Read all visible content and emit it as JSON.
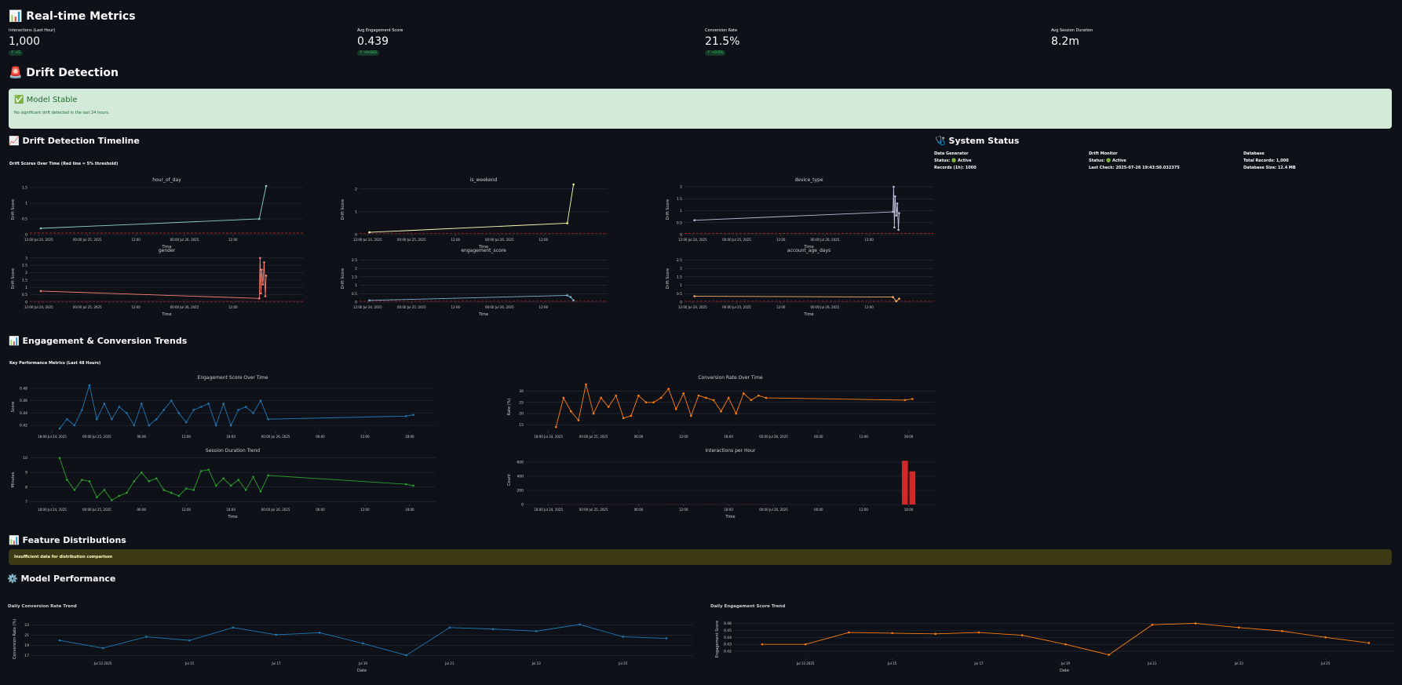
{
  "metrics": {
    "title": "📊 Real-time Metrics",
    "items": [
      {
        "label": "Interactions (Last Hour)",
        "value": "1,000",
        "delta": "↑ +5"
      },
      {
        "label": "Avg Engagement Score",
        "value": "0.439",
        "delta": "↑ +0.003"
      },
      {
        "label": "Conversion Rate",
        "value": "21.5%",
        "delta": "↑ +0.0%"
      },
      {
        "label": "Avg Session Duration",
        "value": "8.2m"
      }
    ]
  },
  "drift": {
    "title": "🚨 Drift Detection",
    "status": {
      "title": "✅ Model Stable",
      "message": "No significant drift detected in the last 24 hours."
    }
  },
  "drift_timeline": {
    "title": "📈 Drift Detection Timeline",
    "subtitle": "Drift Scores Over Time (Red line = 5% threshold)",
    "x_label": "Time",
    "y_label": "Drift Score",
    "threshold": 0.05,
    "threshold_color": "#d62728",
    "xlim": [
      9.8,
      77.5
    ],
    "xticks": [
      {
        "value": 12,
        "label": "12:00 Jul 24, 2025"
      },
      {
        "value": 24,
        "label": "00:00 Jul 25, 2025"
      },
      {
        "value": 36,
        "label": "12:00"
      },
      {
        "value": 48,
        "label": "00:00 Jul 26, 2025"
      },
      {
        "value": 60,
        "label": "12:00"
      }
    ],
    "charts": [
      {
        "type": "line",
        "title": "hour_of_day",
        "color": "#8dd3c7",
        "x": [
          12.5,
          66.5,
          68.2
        ],
        "values": [
          0.2,
          0.5,
          1.55
        ],
        "ylim": [
          0,
          1.6
        ],
        "yticks": [
          0,
          0.5,
          1,
          1.5
        ]
      },
      {
        "type": "line",
        "title": "is_weekend",
        "color": "#ffffb3",
        "x": [
          12.5,
          66.5,
          68.2
        ],
        "values": [
          0.1,
          0.5,
          2.2
        ],
        "ylim": [
          0,
          2.2
        ],
        "yticks": [
          0,
          1,
          2
        ]
      },
      {
        "type": "line",
        "title": "device_type",
        "color": "#bebada",
        "x": [
          12.5,
          66.5,
          66.7,
          66.9,
          67.1,
          67.4,
          67.7,
          68.0,
          68.2
        ],
        "values": [
          0.6,
          0.95,
          2.0,
          0.3,
          1.6,
          0.8,
          1.3,
          0.2,
          0.9
        ],
        "ylim": [
          0,
          2.1
        ],
        "yticks": [
          0,
          0.5,
          1,
          1.5,
          2
        ]
      },
      {
        "type": "line",
        "title": "gender",
        "color": "#fb8072",
        "x": [
          12.5,
          66.5,
          66.7,
          66.9,
          67.1,
          67.4,
          67.7,
          68.0,
          68.2
        ],
        "values": [
          0.75,
          0.25,
          3.0,
          0.6,
          2.2,
          1.2,
          2.7,
          0.4,
          1.8
        ],
        "ylim": [
          0,
          3.2
        ],
        "yticks": [
          0,
          0.5,
          1,
          1.5,
          2,
          2.5,
          3
        ]
      },
      {
        "type": "line",
        "title": "engagement_score",
        "color": "#80b1d3",
        "x": [
          12.5,
          66.5,
          67.4,
          68.2
        ],
        "values": [
          0.1,
          0.4,
          0.3,
          0.1
        ],
        "ylim": [
          0,
          2.8
        ],
        "yticks": [
          0,
          0.5,
          1,
          1.5,
          2,
          2.5
        ]
      },
      {
        "type": "line",
        "title": "account_age_days",
        "color": "#fdb462",
        "x": [
          12.5,
          66.5,
          67.4,
          68.2
        ],
        "values": [
          0.35,
          0.3,
          0.05,
          0.2
        ],
        "ylim": [
          0,
          2.8
        ],
        "yticks": [
          0,
          0.5,
          1,
          1.5,
          2,
          2.5
        ]
      }
    ]
  },
  "system_status": {
    "title": "🩺 System Status",
    "columns": [
      {
        "title": "Data Generator",
        "lines": [
          "Status: 🟢 Active",
          "Records (1h): 1000"
        ]
      },
      {
        "title": "Drift Monitor",
        "lines": [
          "Status: 🟢 Active",
          "Last Check: 2025-07-26 19:43:50.032375"
        ]
      },
      {
        "title": "Database",
        "lines": [
          "Total Records: 1,000",
          "Database Size: 12.4 MB"
        ]
      }
    ]
  },
  "trends": {
    "title": "📊 Engagement & Conversion Trends",
    "subtitle": "Key Performance Metrics (Last 48 Hours)",
    "xlim": [
      15,
      69.5
    ],
    "xticks": [
      {
        "value": 18,
        "label": "18:00 Jul 24, 2025"
      },
      {
        "value": 24,
        "label": "00:00 Jul 25, 2025"
      },
      {
        "value": 30,
        "label": "06:00"
      },
      {
        "value": 36,
        "label": "12:00"
      },
      {
        "value": 42,
        "label": "18:00"
      },
      {
        "value": 48,
        "label": "00:00 Jul 26, 2025"
      },
      {
        "value": 54,
        "label": "06:00"
      },
      {
        "value": 60,
        "label": "12:00"
      },
      {
        "value": 66,
        "label": "18:00"
      }
    ],
    "x": [
      19,
      20,
      21,
      22,
      23,
      24,
      25,
      26,
      27,
      28,
      29,
      30,
      31,
      32,
      33,
      34,
      35,
      36,
      37,
      38,
      39,
      40,
      41,
      42,
      43,
      44,
      45,
      46,
      47,
      65.5,
      66.5
    ],
    "charts": [
      {
        "type": "line",
        "title": "Engagement Score Over Time",
        "y_label": "Score",
        "color": "#1f77b4",
        "ylim": [
          0.41,
          0.49
        ],
        "yticks": [
          0.42,
          0.44,
          0.46,
          0.48
        ],
        "values": [
          0.415,
          0.43,
          0.42,
          0.445,
          0.485,
          0.43,
          0.455,
          0.43,
          0.45,
          0.44,
          0.42,
          0.455,
          0.42,
          0.43,
          0.445,
          0.46,
          0.44,
          0.425,
          0.445,
          0.45,
          0.455,
          0.42,
          0.455,
          0.42,
          0.445,
          0.45,
          0.44,
          0.46,
          0.43,
          0.435,
          0.437
        ]
      },
      {
        "type": "line",
        "title": "Conversion Rate Over Time",
        "y_label": "Rate (%)",
        "color": "#ff7f0e",
        "ylim": [
          12,
          34
        ],
        "yticks": [
          15,
          20,
          25,
          30
        ],
        "values": [
          14,
          27,
          21,
          17,
          33,
          20,
          27,
          23,
          28,
          18,
          19,
          28,
          25,
          25,
          27,
          31,
          22,
          29,
          19,
          28,
          27,
          26,
          21,
          27,
          20,
          29,
          26,
          28,
          27,
          26,
          26.5
        ]
      },
      {
        "type": "line",
        "title": "Session Duration Trend",
        "y_label": "Minutes",
        "x_label": "Time",
        "color": "#2ca02c",
        "ylim": [
          6.8,
          10.2
        ],
        "yticks": [
          7,
          8,
          9,
          10
        ],
        "values": [
          10,
          8.5,
          7.8,
          8.5,
          8.4,
          7.3,
          7.8,
          7.1,
          7.4,
          7.6,
          8.4,
          9.0,
          8.4,
          8.6,
          7.8,
          7.6,
          7.4,
          7.9,
          7.8,
          9.1,
          9.2,
          8.1,
          8.6,
          8.1,
          8.5,
          7.8,
          8.7,
          7.7,
          8.8,
          8.2,
          8.1
        ]
      },
      {
        "type": "bar",
        "title": "Interactions per Hour",
        "y_label": "Count",
        "x_label": "Time",
        "color": "#d62728",
        "ylim": [
          0,
          700
        ],
        "yticks": [
          0,
          200,
          400,
          600
        ],
        "values": [
          2,
          2,
          2,
          2,
          2,
          2,
          2,
          2,
          2,
          2,
          2,
          2,
          2,
          2,
          2,
          2,
          2,
          2,
          2,
          2,
          2,
          2,
          2,
          2,
          2,
          2,
          2,
          2,
          2,
          620,
          470
        ]
      }
    ]
  },
  "distributions": {
    "title": "📊 Feature Distributions",
    "warning": "Insufficient data for distribution comparison"
  },
  "model_performance": {
    "title": "⚙️ Model Performance",
    "x_label": "Date",
    "xlim": [
      11.35,
      26.6
    ],
    "xticks": [
      {
        "value": 13,
        "label": "Jul 13 2025"
      },
      {
        "value": 15,
        "label": "Jul 15"
      },
      {
        "value": 17,
        "label": "Jul 17"
      },
      {
        "value": 19,
        "label": "Jul 19"
      },
      {
        "value": 21,
        "label": "Jul 21"
      },
      {
        "value": 23,
        "label": "Jul 23"
      },
      {
        "value": 25,
        "label": "Jul 25"
      }
    ],
    "x": [
      12,
      13,
      14,
      15,
      16,
      17,
      18,
      19,
      20,
      21,
      22,
      23,
      24,
      25,
      26
    ],
    "charts": [
      {
        "type": "line",
        "title": "Daily Conversion Rate Trend",
        "y_label": "Conversion Rate (%)",
        "color": "#1f77b4",
        "ylim": [
          16.5,
          24
        ],
        "yticks": [
          17,
          19,
          21,
          23
        ],
        "values": [
          20.0,
          18.5,
          20.7,
          20.0,
          22.5,
          21.1,
          21.5,
          19.4,
          17.1,
          22.5,
          22.2,
          21.8,
          23.1,
          20.7,
          20.4
        ]
      },
      {
        "type": "line",
        "title": "Daily Engagement Score Trend",
        "y_label": "Engagement Score",
        "color": "#ff7f0e",
        "ylim": [
          0.41,
          0.465
        ],
        "yticks": [
          0.42,
          0.43,
          0.44,
          0.45,
          0.46
        ],
        "values": [
          0.43,
          0.43,
          0.447,
          0.446,
          0.445,
          0.447,
          0.443,
          0.43,
          0.415,
          0.458,
          0.46,
          0.454,
          0.449,
          0.44,
          0.432
        ]
      }
    ]
  }
}
